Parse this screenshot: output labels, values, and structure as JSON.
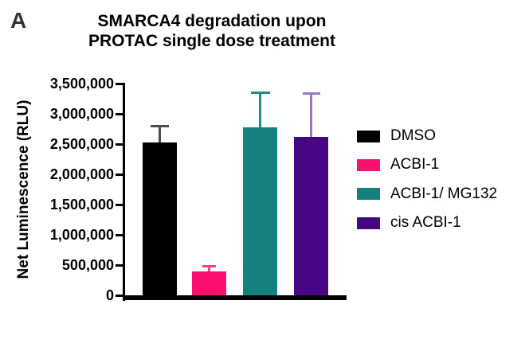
{
  "panel_label": "A",
  "title": {
    "line1": "SMARCA4 degradation upon",
    "line2": "PROTAC single dose treatment"
  },
  "y_axis": {
    "label": "Net Luminescence (RLU)",
    "tick_labels": [
      "0",
      "500,000",
      "1,000,000",
      "1,500,000",
      "2,000,000",
      "2,500,000",
      "3,000,000",
      "3,500,000"
    ]
  },
  "legend": {
    "items": [
      {
        "label": "DMSO",
        "color": "#000000"
      },
      {
        "label": "ACBI-1",
        "color": "#FA106E"
      },
      {
        "label": "ACBI-1/ MG132",
        "color": "#148080"
      },
      {
        "label": "cis ACBI-1",
        "color": "#470782"
      }
    ]
  },
  "chart_data": {
    "type": "bar",
    "title": "SMARCA4 degradation upon PROTAC single dose treatment",
    "xlabel": "",
    "ylabel": "Net Luminescence (RLU)",
    "ylim": [
      0,
      3500000
    ],
    "ytick_interval": 500000,
    "ytick_labels": [
      "0",
      "500,000",
      "1,000,000",
      "1,500,000",
      "2,000,000",
      "2,500,000",
      "3,000,000",
      "3,500,000"
    ],
    "grid": false,
    "legend_position": "right",
    "categories": [
      "DMSO",
      "ACBI-1",
      "ACBI-1/ MG132",
      "cis ACBI-1"
    ],
    "values": [
      2520000,
      400000,
      2780000,
      2620000
    ],
    "error_bar_tops": [
      2800000,
      480000,
      3350000,
      3330000
    ],
    "error_bars_direction": "upper-only",
    "bar_colors": [
      "#000000",
      "#FA106E",
      "#148080",
      "#470782"
    ],
    "error_bar_colors": [
      "#4D4D4D",
      "#FB3F8C",
      "#278987",
      "#9678C2"
    ]
  }
}
